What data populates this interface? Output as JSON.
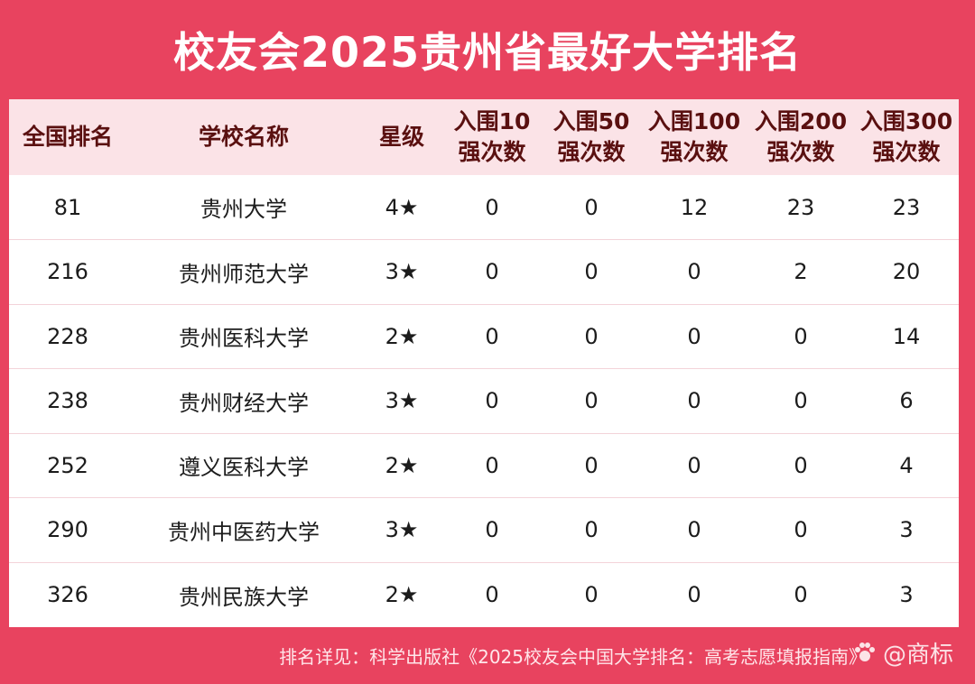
{
  "title": "校友会2025贵州省最好大学排名",
  "table": {
    "headers": [
      {
        "line1": "全国排名",
        "line2": ""
      },
      {
        "line1": "学校名称",
        "line2": ""
      },
      {
        "line1": "星级",
        "line2": ""
      },
      {
        "line1": "入围10",
        "line2": "强次数"
      },
      {
        "line1": "入围50",
        "line2": "强次数"
      },
      {
        "line1": "入围100",
        "line2": "强次数"
      },
      {
        "line1": "入围200",
        "line2": "强次数"
      },
      {
        "line1": "入围300",
        "line2": "强次数"
      }
    ],
    "rows": [
      [
        "81",
        "贵州大学",
        "4★",
        "0",
        "0",
        "12",
        "23",
        "23"
      ],
      [
        "216",
        "贵州师范大学",
        "3★",
        "0",
        "0",
        "0",
        "2",
        "20"
      ],
      [
        "228",
        "贵州医科大学",
        "2★",
        "0",
        "0",
        "0",
        "0",
        "14"
      ],
      [
        "238",
        "贵州财经大学",
        "3★",
        "0",
        "0",
        "0",
        "0",
        "6"
      ],
      [
        "252",
        "遵义医科大学",
        "2★",
        "0",
        "0",
        "0",
        "0",
        "4"
      ],
      [
        "290",
        "贵州中医药大学",
        "3★",
        "0",
        "0",
        "0",
        "0",
        "3"
      ],
      [
        "326",
        "贵州民族大学",
        "2★",
        "0",
        "0",
        "0",
        "0",
        "3"
      ]
    ]
  },
  "footer": "排名详见：科学出版社《2025校友会中国大学排名：高考志愿填报指南》",
  "watermark": "@商标",
  "colors": {
    "background": "#e8435f",
    "header_row": "#fbe3e7",
    "header_text": "#5a1010"
  }
}
